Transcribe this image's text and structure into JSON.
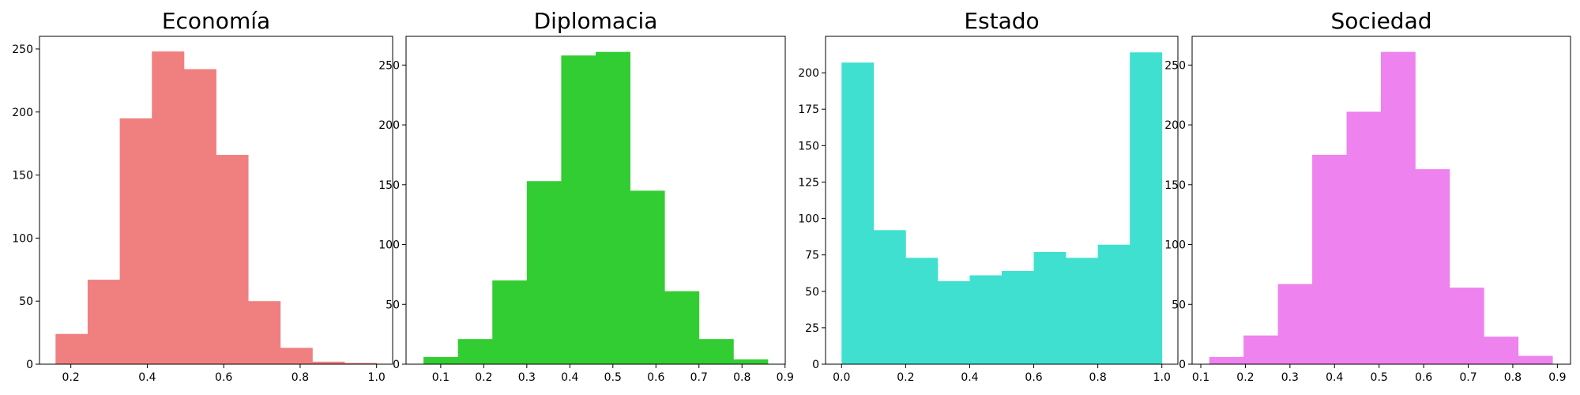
{
  "chart_data": [
    {
      "type": "bar",
      "title": "Economía",
      "color": "#F08080",
      "xlim": [
        0.118,
        1.042
      ],
      "ylim": [
        0,
        260
      ],
      "xticks": [
        0.2,
        0.4,
        0.6,
        0.8,
        1.0
      ],
      "xtick_labels": [
        "0.2",
        "0.4",
        "0.6",
        "0.8",
        "1.0"
      ],
      "yticks": [
        0,
        50,
        100,
        150,
        200,
        250
      ],
      "ytick_labels": [
        "0",
        "50",
        "100",
        "150",
        "200",
        "250"
      ],
      "bin_edges": [
        0.16,
        0.244,
        0.328,
        0.412,
        0.496,
        0.58,
        0.664,
        0.748,
        0.832,
        0.916,
        1.0
      ],
      "values": [
        24,
        67,
        195,
        248,
        234,
        166,
        50,
        13,
        2,
        1
      ]
    },
    {
      "type": "bar",
      "title": "Diplomacia",
      "color": "#32CD32",
      "xlim": [
        0.0195,
        0.9005
      ],
      "ylim": [
        0,
        274
      ],
      "xticks": [
        0.1,
        0.2,
        0.3,
        0.4,
        0.5,
        0.6,
        0.7,
        0.8,
        0.9
      ],
      "xtick_labels": [
        "0.1",
        "0.2",
        "0.3",
        "0.4",
        "0.5",
        "0.6",
        "0.7",
        "0.8",
        "0.9"
      ],
      "yticks": [
        0,
        50,
        100,
        150,
        200,
        250
      ],
      "ytick_labels": [
        "0",
        "50",
        "100",
        "150",
        "200",
        "250"
      ],
      "bin_edges": [
        0.06,
        0.14,
        0.22,
        0.3,
        0.38,
        0.46,
        0.54,
        0.62,
        0.7,
        0.78,
        0.86
      ],
      "values": [
        6,
        21,
        70,
        153,
        258,
        261,
        145,
        61,
        21,
        4
      ]
    },
    {
      "type": "bar",
      "title": "Estado",
      "color": "#40E0D0",
      "xlim": [
        -0.05,
        1.05
      ],
      "ylim": [
        0,
        225
      ],
      "xticks": [
        0.0,
        0.2,
        0.4,
        0.6,
        0.8,
        1.0
      ],
      "xtick_labels": [
        "0.0",
        "0.2",
        "0.4",
        "0.6",
        "0.8",
        "1.0"
      ],
      "yticks": [
        0,
        25,
        50,
        75,
        100,
        125,
        150,
        175,
        200
      ],
      "ytick_labels": [
        "0",
        "25",
        "50",
        "75",
        "100",
        "125",
        "150",
        "175",
        "200"
      ],
      "bin_edges": [
        0.0,
        0.1,
        0.2,
        0.3,
        0.4,
        0.5,
        0.6,
        0.7,
        0.8,
        0.9,
        1.0
      ],
      "values": [
        207,
        92,
        73,
        57,
        61,
        64,
        77,
        73,
        82,
        214
      ]
    },
    {
      "type": "bar",
      "title": "Sociedad",
      "color": "#EE82EE",
      "xlim": [
        0.0805,
        0.9295
      ],
      "ylim": [
        0,
        274
      ],
      "xticks": [
        0.1,
        0.2,
        0.3,
        0.4,
        0.5,
        0.6,
        0.7,
        0.8,
        0.9
      ],
      "xtick_labels": [
        "0.1",
        "0.2",
        "0.3",
        "0.4",
        "0.5",
        "0.6",
        "0.7",
        "0.8",
        "0.9"
      ],
      "yticks": [
        0,
        50,
        100,
        150,
        200,
        250
      ],
      "ytick_labels": [
        "0",
        "50",
        "100",
        "150",
        "200",
        "250"
      ],
      "bin_edges": [
        0.119,
        0.196,
        0.273,
        0.35,
        0.427,
        0.504,
        0.581,
        0.658,
        0.735,
        0.812,
        0.889
      ],
      "values": [
        6,
        24,
        67,
        175,
        211,
        261,
        163,
        64,
        23,
        7
      ]
    }
  ]
}
